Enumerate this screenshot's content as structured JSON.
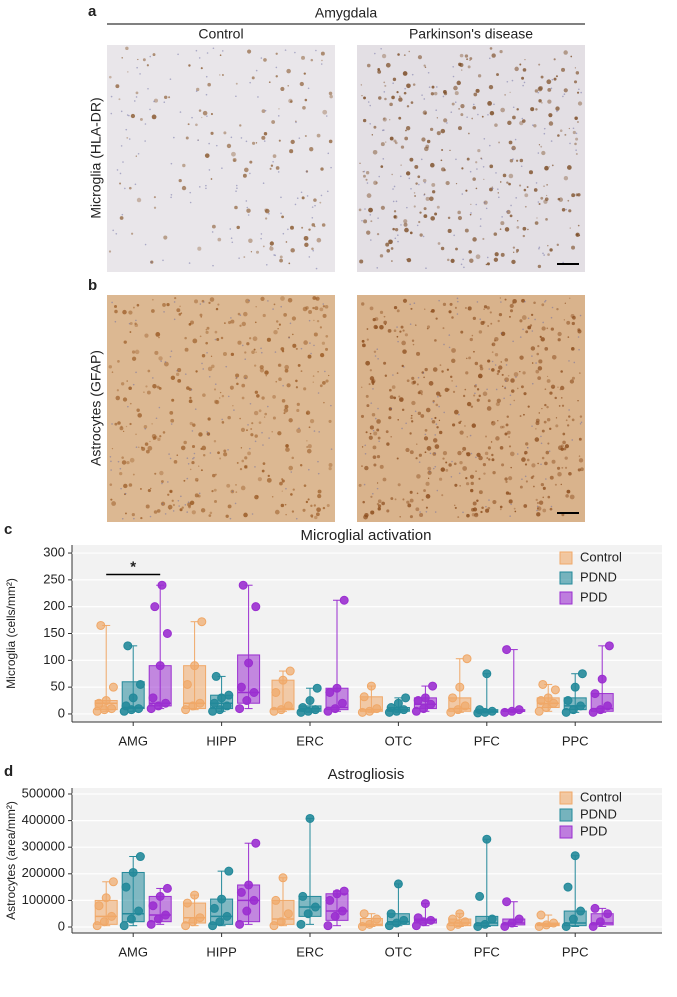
{
  "panels": {
    "a": {
      "label": "a",
      "region": "Amygdala",
      "columns": [
        "Control",
        "Parkinson's disease"
      ],
      "row_label": "Microglia (HLA-DR)"
    },
    "b": {
      "label": "b",
      "row_label": "Astrocytes (GFAP)"
    },
    "c": {
      "label": "c"
    },
    "d": {
      "label": "d"
    }
  },
  "chart_data": [
    {
      "type": "box",
      "title": "Microglial activation",
      "ylabel": "Microglia (cells/mm²)",
      "categories": [
        "AMG",
        "HIPP",
        "ERC",
        "OTC",
        "PFC",
        "PPC"
      ],
      "ylim": [
        -15,
        315
      ],
      "yticks": [
        0,
        50,
        100,
        150,
        200,
        250,
        300
      ],
      "grid": true,
      "legend": "upper right",
      "significance": {
        "text": "*",
        "y": 260
      },
      "series": [
        {
          "name": "Control",
          "color": "#f0a868",
          "boxes": [
            {
              "min": 5,
              "q1": 8,
              "median": 20,
              "q3": 25,
              "max": 165,
              "points": [
                5,
                8,
                10,
                20,
                25,
                50,
                165
              ]
            },
            {
              "min": 8,
              "q1": 10,
              "median": 20,
              "q3": 90,
              "max": 172,
              "points": [
                8,
                15,
                20,
                55,
                90,
                172
              ]
            },
            {
              "min": 5,
              "q1": 8,
              "median": 10,
              "q3": 63,
              "max": 80,
              "points": [
                5,
                8,
                15,
                40,
                63,
                80
              ]
            },
            {
              "min": 3,
              "q1": 5,
              "median": 8,
              "q3": 32,
              "max": 52,
              "points": [
                3,
                5,
                10,
                32,
                52
              ]
            },
            {
              "min": 3,
              "q1": 5,
              "median": 10,
              "q3": 30,
              "max": 103,
              "points": [
                3,
                8,
                15,
                30,
                50,
                103
              ]
            },
            {
              "min": 5,
              "q1": 12,
              "median": 20,
              "q3": 30,
              "max": 55,
              "points": [
                5,
                12,
                20,
                25,
                30,
                45,
                55
              ]
            }
          ]
        },
        {
          "name": "PDND",
          "color": "#23899a",
          "boxes": [
            {
              "min": 5,
              "q1": 10,
              "median": 12,
              "q3": 60,
              "max": 127,
              "points": [
                5,
                8,
                10,
                15,
                30,
                55,
                127
              ]
            },
            {
              "min": 5,
              "q1": 10,
              "median": 20,
              "q3": 35,
              "max": 70,
              "points": [
                5,
                8,
                15,
                20,
                30,
                35,
                70
              ]
            },
            {
              "min": 3,
              "q1": 5,
              "median": 10,
              "q3": 15,
              "max": 48,
              "points": [
                3,
                5,
                8,
                12,
                25,
                48
              ]
            },
            {
              "min": 3,
              "q1": 5,
              "median": 8,
              "q3": 12,
              "max": 30,
              "points": [
                3,
                5,
                8,
                12,
                20,
                30
              ]
            },
            {
              "min": 2,
              "q1": 3,
              "median": 5,
              "q3": 8,
              "max": 75,
              "points": [
                2,
                3,
                5,
                8,
                75
              ]
            },
            {
              "min": 3,
              "q1": 8,
              "median": 15,
              "q3": 30,
              "max": 75,
              "points": [
                3,
                8,
                15,
                25,
                50,
                75
              ]
            }
          ]
        },
        {
          "name": "PDD",
          "color": "#9b2fd0",
          "boxes": [
            {
              "min": 10,
              "q1": 15,
              "median": 20,
              "q3": 90,
              "max": 240,
              "points": [
                10,
                15,
                20,
                30,
                90,
                150,
                200,
                240
              ]
            },
            {
              "min": 10,
              "q1": 20,
              "median": 40,
              "q3": 110,
              "max": 240,
              "points": [
                10,
                25,
                40,
                50,
                95,
                200,
                240
              ]
            },
            {
              "min": 5,
              "q1": 8,
              "median": 12,
              "q3": 48,
              "max": 212,
              "points": [
                5,
                10,
                20,
                40,
                48,
                212
              ]
            },
            {
              "min": 5,
              "q1": 10,
              "median": 18,
              "q3": 30,
              "max": 52,
              "points": [
                5,
                10,
                18,
                25,
                30,
                52
              ]
            },
            {
              "min": 3,
              "q1": 5,
              "median": 5,
              "q3": 8,
              "max": 120,
              "points": [
                3,
                5,
                8,
                120
              ]
            },
            {
              "min": 3,
              "q1": 5,
              "median": 10,
              "q3": 38,
              "max": 127,
              "points": [
                3,
                8,
                15,
                38,
                65,
                127
              ]
            }
          ]
        }
      ]
    },
    {
      "type": "box",
      "title": "Astrogliosis",
      "ylabel": "Astrocytes (area/mm²)",
      "categories": [
        "AMG",
        "HIPP",
        "ERC",
        "OTC",
        "PFC",
        "PPC"
      ],
      "ylim": [
        -22500,
        522500
      ],
      "yticks": [
        0,
        100000,
        200000,
        300000,
        400000,
        500000
      ],
      "grid": true,
      "legend": "upper right",
      "series": [
        {
          "name": "Control",
          "color": "#f0a868",
          "boxes": [
            {
              "min": 5000,
              "q1": 10000,
              "median": 40000,
              "q3": 100000,
              "max": 170000,
              "points": [
                5000,
                20000,
                40000,
                80000,
                110000,
                170000
              ]
            },
            {
              "min": 5000,
              "q1": 15000,
              "median": 35000,
              "q3": 90000,
              "max": 120000,
              "points": [
                5000,
                20000,
                35000,
                90000,
                120000
              ]
            },
            {
              "min": 5000,
              "q1": 10000,
              "median": 30000,
              "q3": 100000,
              "max": 185000,
              "points": [
                5000,
                20000,
                50000,
                100000,
                185000
              ]
            },
            {
              "min": 2000,
              "q1": 5000,
              "median": 10000,
              "q3": 32000,
              "max": 50000,
              "points": [
                2000,
                10000,
                30000,
                50000
              ]
            },
            {
              "min": 2000,
              "q1": 5000,
              "median": 15000,
              "q3": 30000,
              "max": 50000,
              "points": [
                2000,
                10000,
                20000,
                30000,
                50000
              ]
            },
            {
              "min": 2000,
              "q1": 5000,
              "median": 10000,
              "q3": 15000,
              "max": 45000,
              "points": [
                2000,
                8000,
                15000,
                45000
              ]
            }
          ]
        },
        {
          "name": "PDND",
          "color": "#23899a",
          "boxes": [
            {
              "min": 5000,
              "q1": 20000,
              "median": 50000,
              "q3": 205000,
              "max": 265000,
              "points": [
                5000,
                30000,
                60000,
                150000,
                205000,
                265000
              ]
            },
            {
              "min": 5000,
              "q1": 10000,
              "median": 40000,
              "q3": 105000,
              "max": 210000,
              "points": [
                5000,
                20000,
                40000,
                70000,
                105000,
                210000
              ]
            },
            {
              "min": 10000,
              "q1": 40000,
              "median": 75000,
              "q3": 115000,
              "max": 408000,
              "points": [
                10000,
                50000,
                75000,
                115000,
                408000
              ]
            },
            {
              "min": 5000,
              "q1": 10000,
              "median": 20000,
              "q3": 50000,
              "max": 162000,
              "points": [
                5000,
                15000,
                25000,
                50000,
                162000
              ]
            },
            {
              "min": 2000,
              "q1": 5000,
              "median": 15000,
              "q3": 40000,
              "max": 330000,
              "points": [
                2000,
                10000,
                30000,
                115000,
                330000
              ]
            },
            {
              "min": 2000,
              "q1": 5000,
              "median": 15000,
              "q3": 60000,
              "max": 268000,
              "points": [
                2000,
                30000,
                60000,
                150000,
                268000
              ]
            }
          ]
        },
        {
          "name": "PDD",
          "color": "#9b2fd0",
          "boxes": [
            {
              "min": 10000,
              "q1": 20000,
              "median": 45000,
              "q3": 115000,
              "max": 145000,
              "points": [
                10000,
                30000,
                45000,
                80000,
                115000,
                145000
              ]
            },
            {
              "min": 10000,
              "q1": 20000,
              "median": 100000,
              "q3": 158000,
              "max": 315000,
              "points": [
                10000,
                60000,
                100000,
                130000,
                158000,
                315000
              ]
            },
            {
              "min": 5000,
              "q1": 25000,
              "median": 60000,
              "q3": 125000,
              "max": 135000,
              "points": [
                5000,
                40000,
                60000,
                100000,
                125000,
                135000
              ]
            },
            {
              "min": 5000,
              "q1": 15000,
              "median": 25000,
              "q3": 30000,
              "max": 88000,
              "points": [
                5000,
                20000,
                25000,
                35000,
                88000
              ]
            },
            {
              "min": 2000,
              "q1": 8000,
              "median": 15000,
              "q3": 30000,
              "max": 95000,
              "points": [
                2000,
                15000,
                30000,
                95000
              ]
            },
            {
              "min": 2000,
              "q1": 8000,
              "median": 15000,
              "q3": 50000,
              "max": 70000,
              "points": [
                2000,
                20000,
                50000,
                70000
              ]
            }
          ]
        }
      ]
    }
  ]
}
